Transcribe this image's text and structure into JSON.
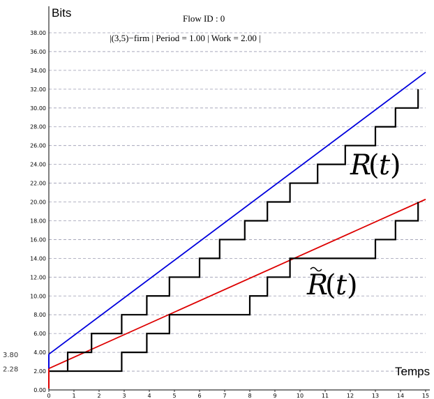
{
  "chart_data": {
    "type": "line",
    "title": "Flow ID : 0",
    "subtitle": "|(3,5)−firm | Period =  1.00 | Work =  2.00 |",
    "xlabel": "Temps",
    "ylabel": "Bits",
    "xlim": [
      0,
      15
    ],
    "ylim": [
      0,
      38
    ],
    "x_ticks": [
      "0",
      "1",
      "2",
      "3",
      "4",
      "5",
      "6",
      "7",
      "8",
      "9",
      "10",
      "11",
      "12",
      "13",
      "14",
      "15"
    ],
    "y_ticks": [
      "0.00",
      "2.00",
      "4.00",
      "6.00",
      "8.00",
      "10.00",
      "12.00",
      "14.00",
      "16.00",
      "18.00",
      "20.00",
      "22.00",
      "24.00",
      "26.00",
      "28.00",
      "30.00",
      "32.00",
      "34.00",
      "36.00",
      "38.00"
    ],
    "grid": "horizontal dashed",
    "marker_labels": [
      {
        "text": "3.80",
        "value": 3.8
      },
      {
        "text": "2.28",
        "value": 2.28
      }
    ],
    "series": [
      {
        "name": "",
        "color": "#0000dd",
        "style": "line",
        "x": [
          0,
          15
        ],
        "y": [
          3.8,
          33.8
        ]
      },
      {
        "name": "",
        "color": "#dd0000",
        "style": "line",
        "x": [
          0,
          15
        ],
        "y": [
          2.28,
          20.28
        ]
      },
      {
        "name": "",
        "color": "#000000",
        "style": "staircase",
        "label_main": "R",
        "label_arg": "t",
        "x": [
          0,
          0.75,
          0.75,
          1.7,
          1.7,
          2.9,
          2.9,
          3.9,
          3.9,
          4.8,
          4.8,
          6.0,
          6.0,
          6.8,
          6.8,
          7.8,
          7.8,
          8.7,
          8.7,
          9.6,
          9.6,
          10.7,
          10.7,
          11.8,
          11.8,
          13.0,
          13.0,
          13.8,
          13.8,
          14.7,
          14.7
        ],
        "y": [
          2,
          2,
          4,
          4,
          6,
          6,
          8,
          8,
          10,
          10,
          12,
          12,
          14,
          14,
          16,
          16,
          18,
          18,
          20,
          20,
          22,
          22,
          24,
          24,
          26,
          26,
          28,
          28,
          30,
          30,
          32
        ]
      },
      {
        "name": "",
        "color": "#000000",
        "style": "staircase",
        "label_main": "R̃",
        "label_arg": "t",
        "x": [
          0,
          2.9,
          2.9,
          3.9,
          3.9,
          4.8,
          4.8,
          8.0,
          8.0,
          8.7,
          8.7,
          9.6,
          9.6,
          13.0,
          13.0,
          13.8,
          13.8,
          14.7,
          14.7
        ],
        "y": [
          2,
          2,
          4,
          4,
          6,
          6,
          8,
          8,
          10,
          10,
          12,
          12,
          14,
          14,
          16,
          16,
          18,
          18,
          20
        ]
      }
    ]
  }
}
